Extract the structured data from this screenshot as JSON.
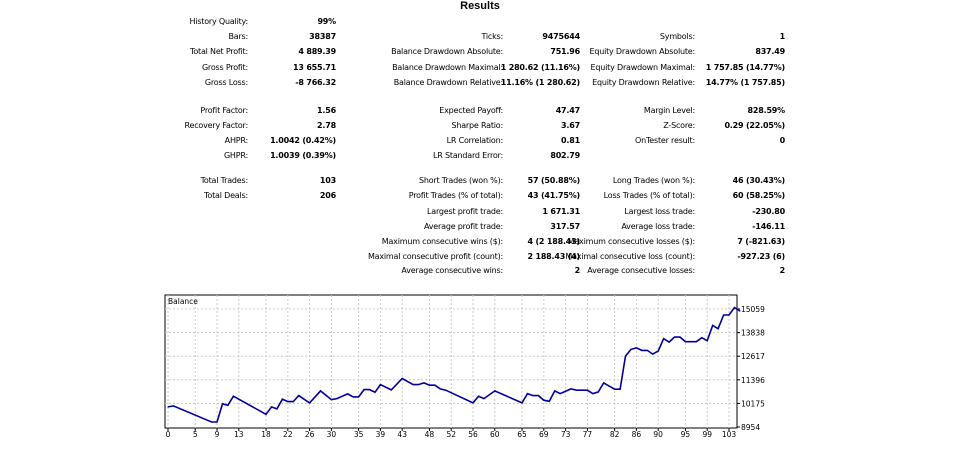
{
  "title": "Results",
  "stats": [
    [
      {
        "label": "History Quality:",
        "value": "99%"
      },
      null,
      null
    ],
    [
      {
        "label": "Bars:",
        "value": "38387"
      },
      {
        "label": "Ticks:",
        "value": "9475644"
      },
      {
        "label": "Symbols:",
        "value": "1"
      }
    ],
    [
      {
        "label": "Total Net Profit:",
        "value": "4 889.39"
      },
      {
        "label": "Balance Drawdown Absolute:",
        "value": "751.96"
      },
      {
        "label": "Equity Drawdown Absolute:",
        "value": "837.49"
      }
    ],
    [
      {
        "label": "Gross Profit:",
        "value": "13 655.71"
      },
      {
        "label": "Balance Drawdown Maximal:",
        "value": "1 280.62 (11.16%)"
      },
      {
        "label": "Equity Drawdown Maximal:",
        "value": "1 757.85 (14.77%)"
      }
    ],
    [
      {
        "label": "Gross Loss:",
        "value": "-8 766.32"
      },
      {
        "label": "Balance Drawdown Relative:",
        "value": "11.16% (1 280.62)"
      },
      {
        "label": "Equity Drawdown Relative:",
        "value": "14.77% (1 757.85)"
      }
    ],
    [
      {
        "label": "Profit Factor:",
        "value": "1.56"
      },
      {
        "label": "Expected Payoff:",
        "value": "47.47"
      },
      {
        "label": "Margin Level:",
        "value": "828.59%"
      }
    ],
    [
      {
        "label": "Recovery Factor:",
        "value": "2.78"
      },
      {
        "label": "Sharpe Ratio:",
        "value": "3.67"
      },
      {
        "label": "Z-Score:",
        "value": "0.29 (22.05%)"
      }
    ],
    [
      {
        "label": "AHPR:",
        "value": "1.0042 (0.42%)"
      },
      {
        "label": "LR Correlation:",
        "value": "0.81"
      },
      {
        "label": "OnTester result:",
        "value": "0"
      }
    ],
    [
      {
        "label": "GHPR:",
        "value": "1.0039 (0.39%)"
      },
      {
        "label": "LR Standard Error:",
        "value": "802.79"
      },
      null
    ],
    [
      {
        "label": "Total Trades:",
        "value": "103"
      },
      {
        "label": "Short Trades (won %):",
        "value": "57 (50.88%)"
      },
      {
        "label": "Long Trades (won %):",
        "value": "46 (30.43%)"
      }
    ],
    [
      {
        "label": "Total Deals:",
        "value": "206"
      },
      {
        "label": "Profit Trades (% of total):",
        "value": "43 (41.75%)"
      },
      {
        "label": "Loss Trades (% of total):",
        "value": "60 (58.25%)"
      }
    ],
    [
      null,
      {
        "label": "Largest profit trade:",
        "value": "1 671.31"
      },
      {
        "label": "Largest loss trade:",
        "value": "-230.80"
      }
    ],
    [
      null,
      {
        "label": "Average profit trade:",
        "value": "317.57"
      },
      {
        "label": "Average loss trade:",
        "value": "-146.11"
      }
    ],
    [
      null,
      {
        "label": "Maximum consecutive wins ($):",
        "value": "4 (2 188.43)"
      },
      {
        "label": "Maximum consecutive losses ($):",
        "value": "7 (-821.63)"
      }
    ],
    [
      null,
      {
        "label": "Maximal consecutive profit (count):",
        "value": "2 188.43 (4)"
      },
      {
        "label": "Maximal consecutive loss (count):",
        "value": "-927.23 (6)"
      }
    ],
    [
      null,
      {
        "label": "Average consecutive wins:",
        "value": "2"
      },
      {
        "label": "Average consecutive losses:",
        "value": "2"
      }
    ]
  ],
  "chart_data": {
    "type": "line",
    "title": "Balance",
    "line_color": "#00009c",
    "grid": true,
    "ylim": [
      8954,
      15059
    ],
    "y_ticks": [
      "15059",
      "13838",
      "12617",
      "11396",
      "10175",
      "8954"
    ],
    "x_ticks": [
      "0",
      "5",
      "9",
      "13",
      "18",
      "22",
      "26",
      "30",
      "35",
      "39",
      "43",
      "48",
      "52",
      "56",
      "60",
      "65",
      "69",
      "73",
      "77",
      "82",
      "86",
      "90",
      "95",
      "99",
      "103"
    ],
    "x": [
      0,
      1,
      8,
      9,
      10,
      11,
      12,
      18,
      19,
      20,
      21,
      22,
      23,
      24,
      26,
      28,
      30,
      31,
      33,
      34,
      35,
      36,
      37,
      38,
      39,
      41,
      43,
      45,
      46,
      47,
      48,
      49,
      50,
      51,
      56,
      57,
      58,
      60,
      65,
      66,
      67,
      68,
      69,
      70,
      71,
      72,
      74,
      75,
      77,
      78,
      79,
      80,
      82,
      83,
      84,
      85,
      86,
      87,
      88,
      89,
      90,
      91,
      92,
      93,
      94,
      95,
      97,
      98,
      99,
      100,
      101,
      102,
      103,
      104,
      105
    ],
    "y": [
      9992,
      10044,
      9213,
      9213,
      10147,
      10078,
      10545,
      9611,
      9992,
      9888,
      10390,
      10269,
      10269,
      10580,
      10199,
      10822,
      10372,
      10424,
      10667,
      10511,
      10511,
      10891,
      10891,
      10753,
      11150,
      10874,
      11462,
      11150,
      11150,
      11237,
      11116,
      11116,
      10926,
      10857,
      10199,
      10545,
      10424,
      10822,
      10199,
      10684,
      10580,
      10580,
      10338,
      10286,
      10822,
      10684,
      10926,
      10857,
      10857,
      10684,
      10770,
      11237,
      10909,
      10909,
      12622,
      12968,
      13054,
      12916,
      12916,
      12726,
      12881,
      13521,
      13348,
      13607,
      13607,
      13365,
      13365,
      13573,
      13417,
      14213,
      14040,
      14749,
      14749,
      15130,
      14957
    ]
  }
}
